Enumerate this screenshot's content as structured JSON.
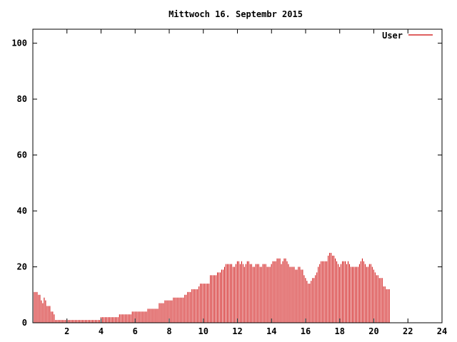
{
  "chart_data": {
    "type": "bar",
    "title": "Mittwoch 16. Septembr 2015",
    "xlabel": "",
    "ylabel": "",
    "xlim": [
      0,
      24
    ],
    "ylim": [
      0,
      105
    ],
    "x_ticks": [
      2,
      4,
      6,
      8,
      10,
      12,
      14,
      16,
      18,
      20,
      22,
      24
    ],
    "y_ticks": [
      0,
      20,
      40,
      60,
      80,
      100
    ],
    "grid": false,
    "legend_position": "top-right",
    "series": [
      {
        "name": "User",
        "color": "#cc0000",
        "x_step_hours": 0.0833,
        "values": [
          12,
          11,
          11,
          11,
          10,
          10,
          8,
          7,
          9,
          8,
          6,
          6,
          6,
          4,
          4,
          3,
          1,
          1,
          1,
          1,
          1,
          1,
          1,
          1,
          1,
          1,
          1,
          1,
          1,
          1,
          1,
          1,
          1,
          1,
          1,
          1,
          1,
          1,
          1,
          1,
          1,
          1,
          1,
          1,
          1,
          1,
          1,
          1,
          2,
          2,
          2,
          2,
          2,
          2,
          2,
          2,
          2,
          2,
          2,
          2,
          2,
          3,
          3,
          3,
          3,
          3,
          3,
          3,
          3,
          3,
          4,
          4,
          4,
          4,
          4,
          4,
          4,
          4,
          4,
          4,
          4,
          5,
          5,
          5,
          5,
          5,
          5,
          5,
          5,
          7,
          7,
          7,
          7,
          8,
          8,
          8,
          8,
          8,
          8,
          9,
          9,
          9,
          9,
          9,
          9,
          9,
          9,
          10,
          10,
          11,
          11,
          11,
          12,
          12,
          12,
          12,
          12,
          13,
          14,
          14,
          14,
          14,
          14,
          14,
          14,
          17,
          17,
          17,
          17,
          17,
          18,
          18,
          18,
          19,
          19,
          20,
          21,
          21,
          21,
          21,
          21,
          20,
          20,
          21,
          22,
          22,
          21,
          22,
          21,
          20,
          21,
          22,
          22,
          21,
          21,
          20,
          20,
          21,
          21,
          21,
          20,
          20,
          21,
          21,
          21,
          20,
          20,
          20,
          21,
          22,
          22,
          22,
          23,
          23,
          23,
          21,
          22,
          23,
          23,
          22,
          21,
          20,
          20,
          20,
          20,
          19,
          19,
          20,
          20,
          19,
          19,
          17,
          16,
          15,
          14,
          14,
          15,
          16,
          16,
          17,
          18,
          20,
          21,
          22,
          22,
          22,
          22,
          22,
          24,
          25,
          25,
          24,
          24,
          23,
          22,
          21,
          20,
          21,
          22,
          22,
          22,
          21,
          22,
          21,
          20,
          20,
          20,
          20,
          20,
          20,
          21,
          22,
          23,
          22,
          21,
          20,
          20,
          21,
          21,
          20,
          19,
          18,
          17,
          17,
          16,
          16,
          16,
          13,
          13,
          12,
          12,
          12
        ]
      }
    ]
  }
}
